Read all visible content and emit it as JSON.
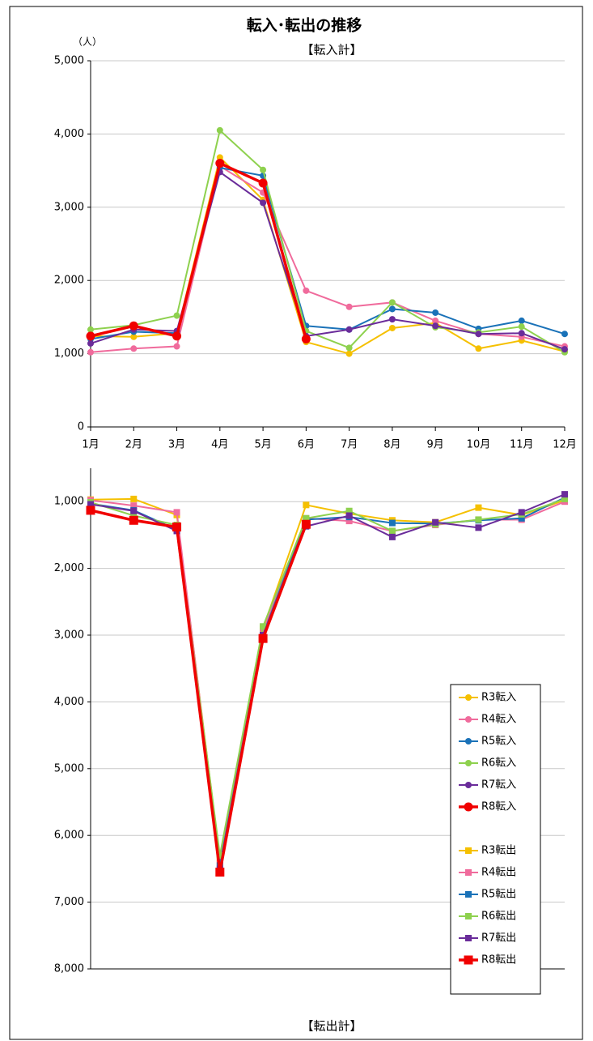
{
  "chart_data": [
    {
      "type": "line",
      "title": "転入･転出の推移",
      "subtitle": "【転入計】",
      "unit": "（人）",
      "categories": [
        "1月",
        "2月",
        "3月",
        "4月",
        "5月",
        "6月",
        "7月",
        "8月",
        "9月",
        "10月",
        "11月",
        "12月"
      ],
      "ylim": [
        0,
        5000
      ],
      "yticks": [
        0,
        {
          "value": 1000,
          "label": "1,000"
        },
        {
          "value": 2000,
          "label": "2,000"
        },
        {
          "value": 3000,
          "label": "3,000"
        },
        {
          "value": 4000,
          "label": "4,000"
        },
        {
          "value": 5000,
          "label": "5,000"
        }
      ],
      "grid": true,
      "marker": "circle",
      "series": [
        {
          "name": "R3転入",
          "color": "#f5c000",
          "line_width": 2,
          "values": [
            1240,
            1230,
            1280,
            3680,
            3100,
            1160,
            1000,
            1350,
            1420,
            1070,
            1180,
            1030
          ]
        },
        {
          "name": "R4転入",
          "color": "#f06b9c",
          "line_width": 2,
          "values": [
            1020,
            1070,
            1100,
            3560,
            3200,
            1860,
            1640,
            1700,
            1450,
            1270,
            1230,
            1100
          ]
        },
        {
          "name": "R5転入",
          "color": "#1a72b8",
          "line_width": 2,
          "values": [
            1200,
            1300,
            1280,
            3540,
            3430,
            1380,
            1330,
            1610,
            1560,
            1340,
            1450,
            1270
          ]
        },
        {
          "name": "R6転入",
          "color": "#8ed14e",
          "line_width": 2,
          "values": [
            1330,
            1390,
            1520,
            4050,
            3510,
            1310,
            1080,
            1700,
            1360,
            1290,
            1370,
            1020
          ]
        },
        {
          "name": "R7転入",
          "color": "#6a2c9a",
          "line_width": 2,
          "values": [
            1140,
            1330,
            1310,
            3480,
            3060,
            1240,
            1330,
            1470,
            1380,
            1270,
            1280,
            1060
          ]
        },
        {
          "name": "R8転入",
          "color": "#f00000",
          "line_width": 3.5,
          "values": [
            1240,
            1380,
            1240,
            3600,
            3330,
            1200,
            null,
            null,
            null,
            null,
            null,
            null
          ]
        }
      ]
    },
    {
      "type": "line",
      "subtitle": "【転出計】",
      "ylim": [
        8000,
        500
      ],
      "yticks": [
        {
          "value": 1000,
          "label": "1,000"
        },
        {
          "value": 2000,
          "label": "2,000"
        },
        {
          "value": 3000,
          "label": "3,000"
        },
        {
          "value": 4000,
          "label": "4,000"
        },
        {
          "value": 5000,
          "label": "5,000"
        },
        {
          "value": 6000,
          "label": "6,000"
        },
        {
          "value": 7000,
          "label": "7,000"
        },
        {
          "value": 8000,
          "label": "8,000"
        }
      ],
      "grid": true,
      "marker": "square",
      "legend": "lower right",
      "series": [
        {
          "name": "R3転出",
          "color": "#f5c000",
          "line_width": 2,
          "values": [
            970,
            960,
            1200,
            6350,
            2900,
            1050,
            1180,
            1280,
            1310,
            1090,
            1200,
            980
          ]
        },
        {
          "name": "R4転出",
          "color": "#f06b9c",
          "line_width": 2,
          "values": [
            980,
            1060,
            1160,
            6400,
            2950,
            1250,
            1290,
            1440,
            1350,
            1270,
            1270,
            1000
          ]
        },
        {
          "name": "R5転出",
          "color": "#1a72b8",
          "line_width": 2,
          "values": [
            1030,
            1130,
            1420,
            6450,
            3000,
            1270,
            1230,
            1320,
            1330,
            1280,
            1250,
            940
          ]
        },
        {
          "name": "R6転出",
          "color": "#8ed14e",
          "line_width": 2,
          "values": [
            1010,
            1210,
            1350,
            6300,
            2870,
            1250,
            1140,
            1440,
            1340,
            1270,
            1190,
            960
          ]
        },
        {
          "name": "R7転出",
          "color": "#6a2c9a",
          "line_width": 2,
          "values": [
            1040,
            1140,
            1440,
            6500,
            3000,
            1370,
            1210,
            1530,
            1310,
            1390,
            1160,
            890
          ]
        },
        {
          "name": "R8転出",
          "color": "#f00000",
          "line_width": 3.5,
          "values": [
            1130,
            1280,
            1380,
            6550,
            3050,
            1340,
            null,
            null,
            null,
            null,
            null,
            null
          ]
        }
      ]
    }
  ]
}
